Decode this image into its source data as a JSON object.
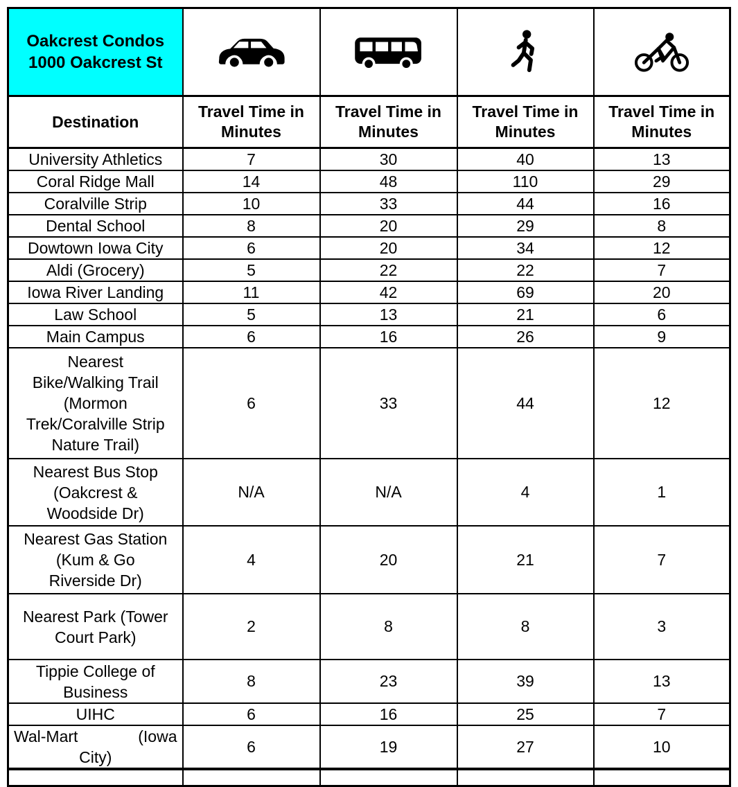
{
  "page": {
    "title": "Oakcrest Condos\n1000 Oakcrest St"
  },
  "table": {
    "destination_header": "Destination",
    "time_header": "Travel Time in Minutes",
    "modes": [
      {
        "name": "car",
        "icon": "car-icon"
      },
      {
        "name": "bus",
        "icon": "bus-icon"
      },
      {
        "name": "walking",
        "icon": "pedestrian-icon"
      },
      {
        "name": "biking",
        "icon": "cyclist-icon"
      }
    ],
    "rows": [
      {
        "name": "University Athletics",
        "times": [
          "7",
          "30",
          "40",
          "13"
        ]
      },
      {
        "name": "Coral Ridge Mall",
        "times": [
          "14",
          "48",
          "110",
          "29"
        ]
      },
      {
        "name": "Coralville Strip",
        "times": [
          "10",
          "33",
          "44",
          "16"
        ]
      },
      {
        "name": "Dental School",
        "times": [
          "8",
          "20",
          "29",
          "8"
        ]
      },
      {
        "name": "Dowtown Iowa City",
        "times": [
          "6",
          "20",
          "34",
          "12"
        ]
      },
      {
        "name": "Aldi (Grocery)",
        "times": [
          "5",
          "22",
          "22",
          "7"
        ]
      },
      {
        "name": "Iowa River Landing",
        "times": [
          "11",
          "42",
          "69",
          "20"
        ]
      },
      {
        "name": "Law School",
        "times": [
          "5",
          "13",
          "21",
          "6"
        ]
      },
      {
        "name": "Main Campus",
        "times": [
          "6",
          "16",
          "26",
          "9"
        ]
      },
      {
        "name": "Nearest\nBike/Walking Trail\n(Mormon\nTrek/Coralville Strip\nNature Trail)",
        "times": [
          "6",
          "33",
          "44",
          "12"
        ]
      },
      {
        "name": "Nearest Bus Stop\n(Oakcrest &\nWoodside Dr)",
        "times": [
          "N/A",
          "N/A",
          "4",
          "1"
        ]
      },
      {
        "name": "Nearest Gas Station\n(Kum & Go\nRiverside Dr)",
        "times": [
          "4",
          "20",
          "21",
          "7"
        ]
      },
      {
        "name": "Nearest Park (Tower\nCourt Park)",
        "times": [
          "2",
          "8",
          "8",
          "3"
        ]
      },
      {
        "name": "Tippie College of\nBusiness",
        "times": [
          "8",
          "23",
          "39",
          "13"
        ]
      },
      {
        "name": "UIHC",
        "times": [
          "6",
          "16",
          "25",
          "7"
        ]
      },
      {
        "name": "Wal-Mart (Iowa\nCity)",
        "times": [
          "6",
          "19",
          "27",
          "10"
        ],
        "justify": true
      }
    ],
    "colors": {
      "header_bg": "#00ffff",
      "border": "#000000",
      "text": "#000000",
      "background": "#ffffff"
    }
  }
}
